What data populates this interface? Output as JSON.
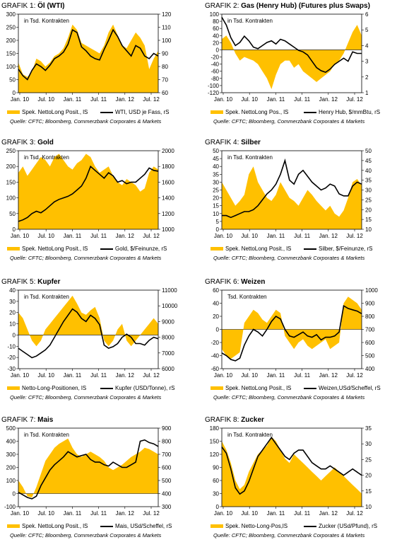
{
  "colors": {
    "bars": "#FFC000",
    "line": "#000000"
  },
  "chart_data": [
    {
      "type": "area",
      "prefix": "GRAFIK 1:",
      "title": "Öl (WTI)",
      "inner": "in Tsd. Kontrakten",
      "legend_left": "Spek. NettoLong Posit., lS",
      "legend_right": "WTI, USD je Fass, rS",
      "source": "Quelle: CFTC; Bloomberg, Commerzbank Corporates & Markets",
      "x_ticks": [
        "Jan. 10",
        "Jul. 10",
        "Jan. 11",
        "Jul. 11",
        "Jan. 12",
        "Jul. 12"
      ],
      "ylim": [
        0,
        300
      ],
      "y_ticks": [
        "0",
        "50",
        "100",
        "150",
        "200",
        "250",
        "300"
      ],
      "y2lim": [
        60,
        120
      ],
      "y2_ticks": [
        "60",
        "70",
        "80",
        "90",
        "100",
        "110",
        "120"
      ],
      "bar_series": [
        115,
        70,
        60,
        80,
        130,
        120,
        100,
        115,
        140,
        150,
        170,
        210,
        260,
        240,
        190,
        180,
        170,
        160,
        150,
        180,
        230,
        260,
        220,
        180,
        170,
        200,
        230,
        210,
        180,
        90,
        130,
        160
      ],
      "line_series": [
        78,
        73,
        70,
        77,
        82,
        80,
        77,
        81,
        86,
        88,
        91,
        97,
        108,
        106,
        95,
        92,
        88,
        86,
        85,
        93,
        100,
        108,
        103,
        96,
        92,
        88,
        96,
        94,
        88,
        86,
        90,
        88
      ]
    },
    {
      "type": "area",
      "prefix": "GRAFIK 2:",
      "title": "Gas (Henry Hub) (Futures plus Swaps)",
      "inner": "in Tsd. Kontrakten",
      "legend_left": "Spek. NettoLong Pos., lS",
      "legend_right": "Henry Hub, $/mmBtu, rS",
      "source": "Quelle: CFTC; Bloomberg, Commerzbank Corporates & Markets",
      "x_ticks": [
        "Jan. 10",
        "Jul. 10",
        "Jan. 11",
        "Jul. 11",
        "Jan. 12",
        "Jul. 12"
      ],
      "ylim": [
        -120,
        100
      ],
      "y_ticks": [
        "-120",
        "-100",
        "-80",
        "-60",
        "-40",
        "-20",
        "0",
        "20",
        "40",
        "60",
        "80",
        "100"
      ],
      "y2lim": [
        1,
        6
      ],
      "y2_ticks": [
        "1",
        "2",
        "3",
        "4",
        "5",
        "6"
      ],
      "bar_series": [
        30,
        40,
        20,
        -10,
        -30,
        -20,
        -25,
        -30,
        -40,
        -60,
        -80,
        -110,
        -70,
        -40,
        -30,
        -30,
        -50,
        -40,
        -60,
        -70,
        -80,
        -90,
        -80,
        -70,
        -60,
        -40,
        -30,
        -10,
        20,
        50,
        70,
        40
      ],
      "line_series": [
        5.8,
        5.3,
        4.5,
        4.0,
        4.2,
        4.6,
        4.3,
        3.9,
        3.8,
        4.0,
        4.2,
        4.3,
        4.1,
        4.4,
        4.3,
        4.1,
        3.9,
        3.7,
        3.6,
        3.4,
        3.0,
        2.6,
        2.4,
        2.3,
        2.5,
        2.8,
        3.0,
        3.2,
        3.0,
        3.6,
        3.5,
        3.5
      ]
    },
    {
      "type": "area",
      "prefix": "GRAFIK 3:",
      "title": "Gold",
      "inner": "in Tsd. Kontrakten",
      "legend_left": "Spek. NettoLong Posit., lS",
      "legend_right": "Gold, $/Feinunze, rS",
      "source": "Quelle: CFTC; Bloomberg, Commerzbank Corporates & Markets",
      "x_ticks": [
        "Jan. 10",
        "Jul. 10",
        "Jan. 11",
        "Jul. 11",
        "Jan. 12",
        "Jul. 12"
      ],
      "ylim": [
        0,
        250
      ],
      "y_ticks": [
        "0",
        "50",
        "100",
        "150",
        "200",
        "250"
      ],
      "y2lim": [
        1000,
        2000
      ],
      "y2_ticks": [
        "1000",
        "1200",
        "1400",
        "1600",
        "1800",
        "2000"
      ],
      "bar_series": [
        180,
        200,
        170,
        190,
        210,
        230,
        220,
        200,
        230,
        240,
        220,
        200,
        190,
        210,
        220,
        240,
        230,
        200,
        180,
        190,
        200,
        170,
        150,
        140,
        160,
        150,
        140,
        120,
        130,
        180,
        200,
        190
      ],
      "line_series": [
        1100,
        1120,
        1150,
        1200,
        1230,
        1210,
        1250,
        1300,
        1350,
        1380,
        1400,
        1420,
        1450,
        1500,
        1550,
        1650,
        1800,
        1750,
        1700,
        1650,
        1720,
        1680,
        1600,
        1620,
        1580,
        1600,
        1600,
        1650,
        1700,
        1780,
        1750,
        1740
      ]
    },
    {
      "type": "area",
      "prefix": "GRAFIK 4:",
      "title": "Silber",
      "inner": "in Tsd. Kontrakten",
      "legend_left": "Spek. NettoLong Posit., lS",
      "legend_right": "Silber, $/Feinunze, rS",
      "source": "Quelle: CFTC; Bloomberg, Commerzbank Corporates & Markets",
      "x_ticks": [
        "Jan. 10",
        "Jul. 10",
        "Jan. 11",
        "Jul. 11",
        "Jan. 12",
        "Jul. 12"
      ],
      "ylim": [
        0,
        50
      ],
      "y_ticks": [
        "0",
        "5",
        "10",
        "15",
        "20",
        "25",
        "30",
        "35",
        "40",
        "45",
        "50"
      ],
      "y2lim": [
        10,
        50
      ],
      "y2_ticks": [
        "10",
        "15",
        "20",
        "25",
        "30",
        "35",
        "40",
        "45",
        "50"
      ],
      "bar_series": [
        30,
        25,
        20,
        15,
        18,
        22,
        35,
        40,
        30,
        25,
        20,
        18,
        22,
        30,
        25,
        20,
        18,
        15,
        20,
        25,
        22,
        18,
        15,
        12,
        15,
        10,
        8,
        12,
        20,
        30,
        32,
        28
      ],
      "line_series": [
        17,
        17,
        16,
        17,
        18,
        19,
        19,
        20,
        22,
        25,
        28,
        30,
        33,
        38,
        45,
        35,
        33,
        38,
        40,
        37,
        34,
        32,
        30,
        31,
        33,
        32,
        28,
        27,
        27,
        32,
        34,
        33
      ]
    },
    {
      "type": "area",
      "prefix": "GRAFIK 5:",
      "title": "Kupfer",
      "inner": "in Tsd. Kontrakten",
      "legend_left": "Netto-Long-Positionen, lS",
      "legend_right": "Kupfer (USD/Tonne), rS",
      "source": "Quelle: CFTC; Bloomberg, Commerzbank Corporates & Markets",
      "x_ticks": [
        "Jan. 10",
        "Jul. 10",
        "Jan. 11",
        "Jul. 11",
        "Jan. 12",
        "Jul. 12"
      ],
      "ylim": [
        -30,
        40
      ],
      "y_ticks": [
        "-30",
        "-20",
        "-10",
        "0",
        "10",
        "20",
        "30",
        "40"
      ],
      "y2lim": [
        6000,
        11000
      ],
      "y2_ticks": [
        "6000",
        "7000",
        "8000",
        "9000",
        "10000",
        "11000"
      ],
      "bar_series": [
        20,
        15,
        5,
        -5,
        -10,
        -5,
        5,
        10,
        15,
        20,
        25,
        30,
        35,
        28,
        20,
        18,
        22,
        25,
        15,
        -5,
        -10,
        -5,
        5,
        10,
        -5,
        -10,
        -5,
        0,
        5,
        10,
        15,
        10
      ],
      "line_series": [
        7300,
        7100,
        6900,
        6700,
        6800,
        7000,
        7200,
        7500,
        8000,
        8500,
        9000,
        9400,
        9800,
        9600,
        9200,
        9000,
        9400,
        9200,
        8800,
        7500,
        7300,
        7400,
        7600,
        8000,
        8200,
        8000,
        7600,
        7600,
        7500,
        7800,
        8000,
        7900
      ]
    },
    {
      "type": "area",
      "prefix": "GRAFIK 6:",
      "title": "Weizen",
      "inner": "Tsd. Kontrakten",
      "legend_left": "Spek. NettoLong Posit., lS",
      "legend_right": "Weizen,USd/Scheffel, rS",
      "source": "Quelle: CFTC; Bloomberg, Commerzbank Corporates & Markets",
      "x_ticks": [
        "Jan. 10",
        "Jul. 10",
        "Jan. 11",
        "Jul. 11",
        "Jan. 12",
        "Jul. 12"
      ],
      "ylim": [
        -60,
        60
      ],
      "y_ticks": [
        "-60",
        "-40",
        "-20",
        "0",
        "20",
        "40",
        "60"
      ],
      "y2lim": [
        400,
        1000
      ],
      "y2_ticks": [
        "400",
        "500",
        "600",
        "700",
        "800",
        "900",
        "1000"
      ],
      "bar_series": [
        -30,
        -40,
        -45,
        -40,
        -35,
        10,
        20,
        30,
        25,
        15,
        10,
        20,
        30,
        25,
        -10,
        -20,
        -30,
        -20,
        -15,
        -25,
        -30,
        -25,
        -20,
        -15,
        -30,
        -25,
        -20,
        40,
        50,
        45,
        40,
        30
      ],
      "line_series": [
        520,
        500,
        470,
        460,
        480,
        580,
        650,
        700,
        680,
        650,
        700,
        760,
        800,
        780,
        700,
        650,
        640,
        660,
        680,
        650,
        640,
        660,
        620,
        640,
        640,
        650,
        680,
        880,
        860,
        850,
        840,
        820
      ]
    },
    {
      "type": "area",
      "prefix": "GRAFIK 7:",
      "title": "Mais",
      "inner": "in Tsd. Kontrakten",
      "legend_left": "Spek. NettoLong Posit., lS",
      "legend_right": "Mais, USd/Scheffel, rS",
      "source": "Quelle: CFTC; Bloomberg, Commerzbank Corporates & Markets",
      "x_ticks": [
        "Jan. 10",
        "Jul. 10",
        "Jan. 11",
        "Jul. 11",
        "Jan. 12",
        "Jul. 12"
      ],
      "ylim": [
        -100,
        500
      ],
      "y_ticks": [
        "-100",
        "0",
        "100",
        "200",
        "300",
        "400",
        "500"
      ],
      "y2lim": [
        300,
        900
      ],
      "y2_ticks": [
        "300",
        "400",
        "500",
        "600",
        "700",
        "800",
        "900"
      ],
      "bar_series": [
        100,
        50,
        -20,
        -30,
        50,
        150,
        250,
        300,
        350,
        380,
        400,
        420,
        350,
        300,
        280,
        300,
        320,
        300,
        280,
        250,
        200,
        180,
        200,
        220,
        250,
        280,
        300,
        320,
        350,
        340,
        320,
        300
      ],
      "line_series": [
        410,
        390,
        370,
        360,
        380,
        460,
        520,
        580,
        620,
        650,
        680,
        720,
        700,
        680,
        690,
        700,
        660,
        640,
        640,
        620,
        610,
        640,
        620,
        600,
        600,
        620,
        640,
        800,
        810,
        790,
        780,
        760
      ]
    },
    {
      "type": "area",
      "prefix": "GRAFIK 8:",
      "title": "Zucker",
      "inner": "in Tsd. Kontrakten",
      "legend_left": "Spek. Netto-Long-Pos,lS",
      "legend_right": "Zucker (USd/Pfund), rS",
      "source": "Quelle: CFTC; Bloomberg, Commerzbank Corporates & Markets",
      "x_ticks": [
        "Jan. 10",
        "Jul. 10",
        "Jan. 11",
        "Jul. 11",
        "Jan. 12",
        "Jul. 12"
      ],
      "ylim": [
        0,
        180
      ],
      "y_ticks": [
        "0",
        "30",
        "60",
        "90",
        "120",
        "150",
        "180"
      ],
      "y2lim": [
        10,
        35
      ],
      "y2_ticks": [
        "10",
        "15",
        "20",
        "25",
        "30",
        "35"
      ],
      "bar_series": [
        150,
        130,
        100,
        60,
        40,
        50,
        80,
        100,
        120,
        130,
        140,
        160,
        150,
        130,
        110,
        100,
        120,
        110,
        100,
        90,
        80,
        70,
        60,
        70,
        80,
        90,
        80,
        70,
        60,
        50,
        40,
        30
      ],
      "line_series": [
        29,
        27,
        22,
        16,
        14,
        15,
        18,
        22,
        26,
        28,
        30,
        32,
        30,
        28,
        26,
        25,
        27,
        28,
        28,
        26,
        24,
        23,
        22,
        22,
        23,
        22,
        21,
        20,
        21,
        22,
        21,
        20
      ]
    }
  ]
}
